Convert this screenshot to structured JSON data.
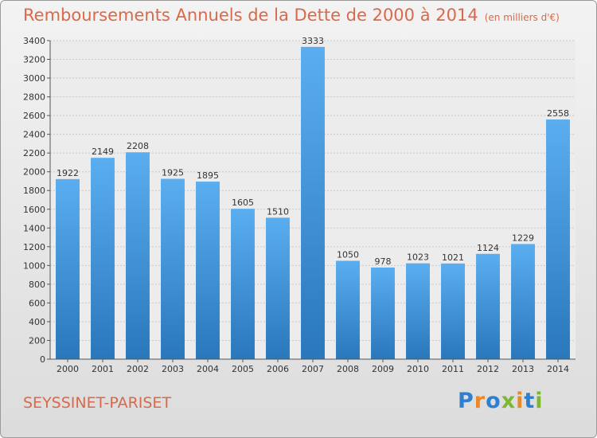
{
  "chart_data": {
    "type": "bar",
    "title": "Remboursements Annuels de la Dette de 2000 à 2014",
    "subtitle": "(en milliers d'€)",
    "categories": [
      "2000",
      "2001",
      "2002",
      "2003",
      "2004",
      "2005",
      "2006",
      "2007",
      "2008",
      "2009",
      "2010",
      "2011",
      "2012",
      "2013",
      "2014"
    ],
    "values": [
      1922,
      2149,
      2208,
      1925,
      1895,
      1605,
      1510,
      3333,
      1050,
      978,
      1023,
      1021,
      1124,
      1229,
      2558
    ],
    "ylim": [
      0,
      3400
    ],
    "yticks": [
      0,
      200,
      400,
      600,
      800,
      1000,
      1200,
      1400,
      1600,
      1800,
      2000,
      2200,
      2400,
      2600,
      2800,
      3000,
      3200,
      3400
    ],
    "grid": true,
    "bar_color": "#3d8fd6"
  },
  "footer": {
    "commune": "SEYSSINET-PARISET",
    "logo_letters": [
      {
        "ch": "P",
        "color": "#2f7fd0"
      },
      {
        "ch": "r",
        "color": "#e8892a"
      },
      {
        "ch": "o",
        "color": "#2f7fd0"
      },
      {
        "ch": "x",
        "color": "#7cb82f"
      },
      {
        "ch": "i",
        "color": "#e8892a"
      },
      {
        "ch": "t",
        "color": "#2f7fd0"
      },
      {
        "ch": "i",
        "color": "#7cb82f"
      }
    ]
  }
}
